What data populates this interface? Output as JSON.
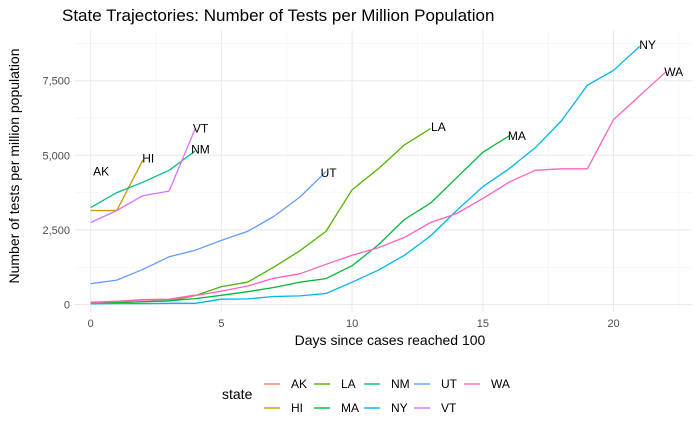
{
  "chart_data": {
    "type": "line",
    "title": "State Trajectories: Number of Tests per Million Population",
    "xlabel": "Days since cases reached 100",
    "ylabel": "Number of tests per million population",
    "xlim": [
      -0.6,
      23
    ],
    "ylim": [
      -250,
      9200
    ],
    "x_ticks": [
      0,
      5,
      10,
      15,
      20
    ],
    "y_ticks": [
      0,
      2500,
      5000,
      7500
    ],
    "y_tick_labels": [
      "0",
      "2,500",
      "5,000",
      "7,500"
    ],
    "grid": true,
    "legend": {
      "title": "state",
      "placement": "bottom",
      "rows": [
        [
          "AK",
          "LA",
          "NM",
          "UT",
          "WA"
        ],
        [
          "HI",
          "MA",
          "NY",
          "VT"
        ]
      ]
    },
    "series": [
      {
        "name": "AK",
        "color": "#F8766D",
        "x": [
          0,
          1,
          2,
          3,
          4
        ],
        "y": [
          80,
          110,
          170,
          180,
          320
        ],
        "label": {
          "text": "AK",
          "x": 0.4,
          "y": 4450
        }
      },
      {
        "name": "HI",
        "color": "#C49A00",
        "x": [
          0,
          1,
          2
        ],
        "y": [
          3150,
          3150,
          4850
        ],
        "label": {
          "text": "HI",
          "x": 2.2,
          "y": 4900
        }
      },
      {
        "name": "LA",
        "color": "#53B400",
        "x": [
          0,
          1,
          2,
          3,
          4,
          5,
          6,
          7,
          8,
          9,
          10,
          11,
          12,
          13
        ],
        "y": [
          30,
          60,
          100,
          120,
          300,
          600,
          750,
          1250,
          1800,
          2450,
          3850,
          4550,
          5350,
          5900
        ],
        "label": {
          "text": "LA",
          "x": 13.3,
          "y": 5950
        }
      },
      {
        "name": "MA",
        "color": "#00B938",
        "x": [
          0,
          1,
          2,
          3,
          4,
          5,
          6,
          7,
          8,
          9,
          10,
          11,
          12,
          13,
          14,
          15,
          16
        ],
        "y": [
          50,
          70,
          90,
          130,
          200,
          310,
          430,
          570,
          750,
          870,
          1300,
          2000,
          2850,
          3400,
          4250,
          5100,
          5650
        ],
        "label": {
          "text": "MA",
          "x": 16.3,
          "y": 5650
        }
      },
      {
        "name": "NM",
        "color": "#00C08B",
        "x": [
          0,
          1,
          2,
          3,
          4
        ],
        "y": [
          3250,
          3750,
          4100,
          4500,
          5150
        ],
        "label": {
          "text": "NM",
          "x": 4.2,
          "y": 5200
        }
      },
      {
        "name": "NY",
        "color": "#00B6EB",
        "x": [
          0,
          1,
          2,
          3,
          4,
          5,
          6,
          7,
          8,
          9,
          10,
          11,
          12,
          13,
          14,
          15,
          16,
          17,
          18,
          19,
          20,
          21
        ],
        "y": [
          20,
          30,
          30,
          40,
          40,
          180,
          190,
          270,
          290,
          370,
          750,
          1150,
          1650,
          2300,
          3150,
          3950,
          4550,
          5250,
          6150,
          7350,
          7850,
          8650
        ],
        "label": {
          "text": "NY",
          "x": 21.3,
          "y": 8700
        }
      },
      {
        "name": "UT",
        "color": "#619CFF",
        "x": [
          0,
          1,
          2,
          3,
          4,
          5,
          6,
          7,
          8,
          9
        ],
        "y": [
          700,
          820,
          1180,
          1600,
          1820,
          2150,
          2450,
          2950,
          3600,
          4450
        ],
        "label": {
          "text": "UT",
          "x": 9.1,
          "y": 4400
        }
      },
      {
        "name": "VT",
        "color": "#DB72FB",
        "x": [
          0,
          1,
          2,
          3,
          4
        ],
        "y": [
          2750,
          3150,
          3650,
          3800,
          5900
        ],
        "label": {
          "text": "VT",
          "x": 4.2,
          "y": 5900
        }
      },
      {
        "name": "WA",
        "color": "#FF61C3",
        "x": [
          0,
          1,
          2,
          3,
          4,
          5,
          6,
          7,
          8,
          9,
          10,
          11,
          12,
          13,
          14,
          15,
          16,
          17,
          18,
          19,
          20,
          21,
          22
        ],
        "y": [
          50,
          110,
          150,
          170,
          300,
          450,
          620,
          880,
          1030,
          1350,
          1650,
          1900,
          2250,
          2750,
          3050,
          3550,
          4100,
          4500,
          4550,
          4550,
          6200,
          7000,
          7800
        ],
        "label": {
          "text": "WA",
          "x": 22.3,
          "y": 7800
        }
      }
    ]
  }
}
